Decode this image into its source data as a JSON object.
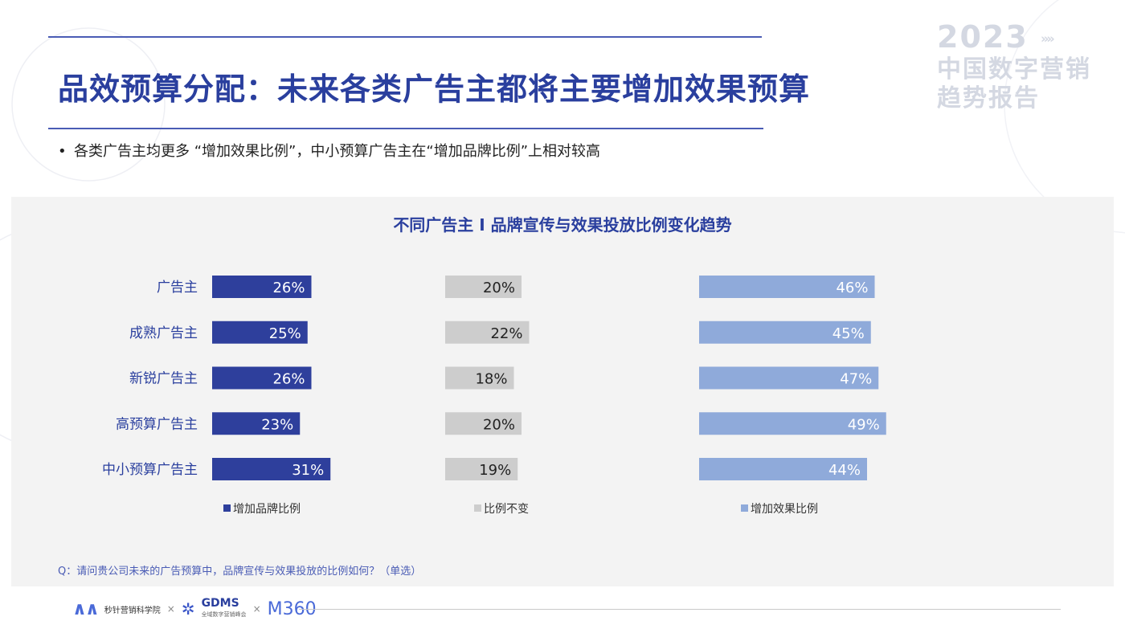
{
  "page": {
    "title": "品效预算分配：未来各类广告主都将主要增加效果预算",
    "bullet": "各类广告主均更多 “增加效果比例”，中小预算广告主在“增加品牌比例”上相对较高",
    "question": "Q：请问贵公司未来的广告预算中，品牌宣传与效果投放的比例如何？（单选）"
  },
  "brand": {
    "year": "2023",
    "arrows": "»»",
    "line1": "中国数字营销",
    "line2": "趋势报告"
  },
  "footer": {
    "org1": "秒针营销科学院",
    "times1": "×",
    "org2": "GDMS",
    "org2_sub": "全域数字营销峰会",
    "times2": "×",
    "org3": "M360"
  },
  "colors": {
    "brand_blue": "#2a3f9e",
    "series_brand": "#2e3f9c",
    "series_same": "#cdcdcd",
    "series_effect": "#8faada"
  },
  "chart_data": {
    "type": "bar",
    "orientation": "horizontal",
    "title": "不同广告主 I 品牌宣传与效果投放比例变化趋势",
    "categories": [
      "广告主",
      "成熟广告主",
      "新锐广告主",
      "高预算广告主",
      "中小预算广告主"
    ],
    "series": [
      {
        "name": "增加品牌比例",
        "values": [
          26,
          25,
          26,
          23,
          31
        ],
        "labels": [
          "26%",
          "25%",
          "26%",
          "23%",
          "31%"
        ]
      },
      {
        "name": "比例不变",
        "values": [
          20,
          22,
          18,
          20,
          19
        ],
        "labels": [
          "20%",
          "22%",
          "18%",
          "20%",
          "19%"
        ]
      },
      {
        "name": "增加效果比例",
        "values": [
          46,
          45,
          47,
          49,
          44
        ],
        "labels": [
          "46%",
          "45%",
          "47%",
          "49%",
          "44%"
        ]
      }
    ],
    "unit": "%",
    "legend": "bottom",
    "grid": false
  }
}
